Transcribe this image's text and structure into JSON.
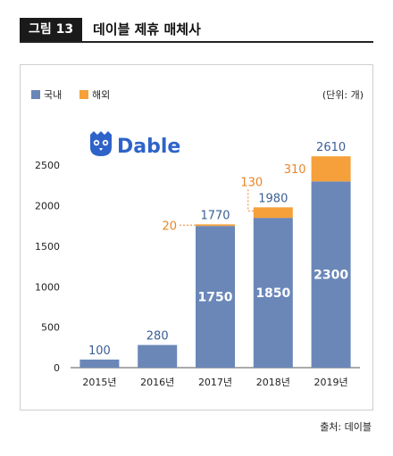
{
  "figure": {
    "badge": "그림 13",
    "title": "데이블 제휴 매체사"
  },
  "unit_label": "(단위: 개)",
  "source": "출처: 데이블",
  "logo_text": "Dable",
  "colors": {
    "domestic": "#6a87b8",
    "overseas": "#f5a03a",
    "total_label": "#3a5f95",
    "overseas_label": "#e8862a"
  },
  "chart_data": {
    "type": "bar",
    "stacked": true,
    "categories": [
      "2015년",
      "2016년",
      "2017년",
      "2018년",
      "2019년"
    ],
    "series": [
      {
        "name": "국내",
        "values": [
          100,
          280,
          1750,
          1850,
          2300
        ]
      },
      {
        "name": "해외",
        "values": [
          0,
          0,
          20,
          130,
          310
        ]
      }
    ],
    "totals": [
      100,
      280,
      1770,
      1980,
      2610
    ],
    "y_ticks": [
      0,
      500,
      1000,
      1500,
      2000,
      2500
    ],
    "ylim": [
      0,
      2700
    ],
    "legend_position": "top-left",
    "grid": false
  }
}
